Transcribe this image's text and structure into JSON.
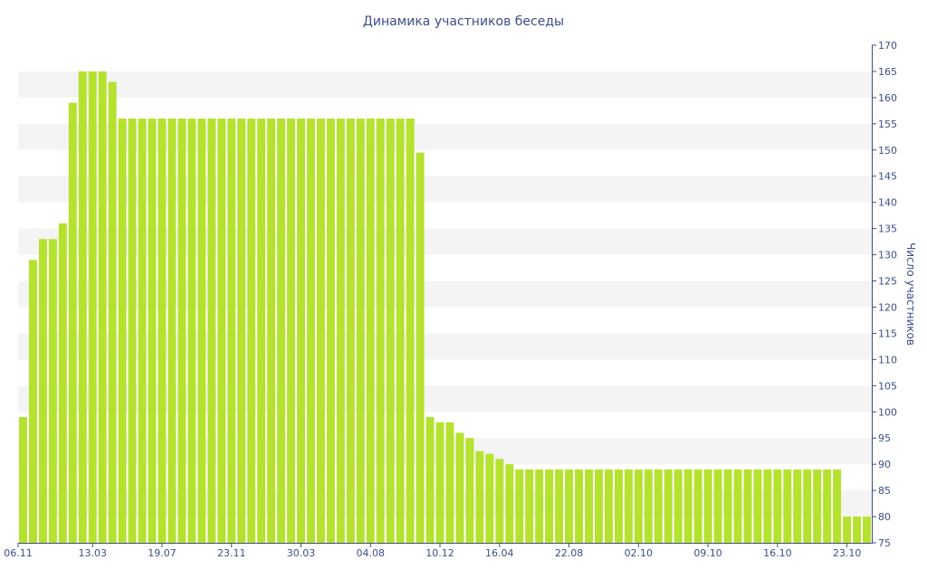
{
  "chart_data": {
    "type": "bar",
    "title": "Динамика участников беседы",
    "xlabel": "",
    "ylabel": "Число участников",
    "ylim": [
      75,
      170
    ],
    "y_ticks": [
      75,
      80,
      85,
      90,
      95,
      100,
      105,
      110,
      115,
      120,
      125,
      130,
      135,
      140,
      145,
      150,
      155,
      160,
      165,
      170
    ],
    "x_tick_labels": [
      "06.11",
      "13.03",
      "19.07",
      "23.11",
      "30.03",
      "04.08",
      "10.12",
      "16.04",
      "22.08",
      "02.10",
      "09.10",
      "16.10",
      "23.10"
    ],
    "grid": "alternating horizontal bands",
    "y_axis_side": "right",
    "bar_color": "#b5e22e",
    "band_color": "#f4f4f4",
    "text_color": "#3d4e8a",
    "values": [
      99,
      129,
      133,
      133,
      136,
      159,
      165,
      165,
      165,
      163,
      156,
      156,
      156,
      156,
      156,
      156,
      156,
      156,
      156,
      156,
      156,
      156,
      156,
      156,
      156,
      156,
      156,
      156,
      156,
      156,
      156,
      156,
      156,
      156,
      156,
      156,
      156,
      156,
      156,
      156,
      149.5,
      99,
      98,
      98,
      96,
      95,
      92.5,
      92,
      91,
      90,
      89,
      89,
      89,
      89,
      89,
      89,
      89,
      89,
      89,
      89,
      89,
      89,
      89,
      89,
      89,
      89,
      89,
      89,
      89,
      89,
      89,
      89,
      89,
      89,
      89,
      89,
      89,
      89,
      89,
      89,
      89,
      89,
      89,
      80,
      80,
      80
    ]
  }
}
